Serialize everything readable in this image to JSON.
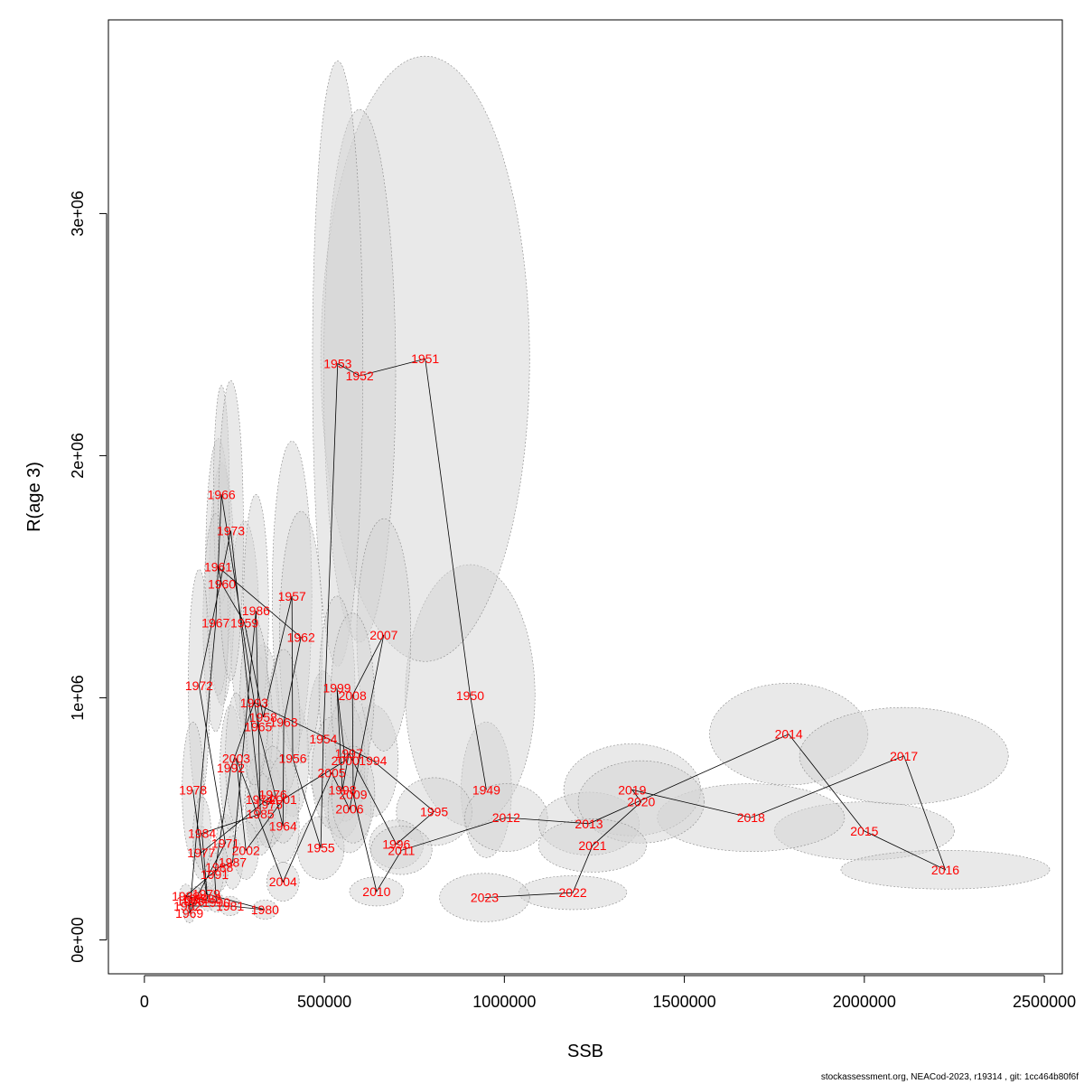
{
  "chart_data": {
    "type": "scatter",
    "xlabel": "SSB",
    "ylabel": "R(age 3)",
    "xlim": [
      -100000,
      2550000
    ],
    "ylim": [
      -140000,
      3800000
    ],
    "xticks": [
      0,
      500000,
      1000000,
      1500000,
      2000000,
      2500000
    ],
    "xtick_labels": [
      "0",
      "500000",
      "1000000",
      "1500000",
      "2000000",
      "2500000"
    ],
    "yticks": [
      0,
      1000000,
      2000000,
      3000000
    ],
    "ytick_labels": [
      "0e+00",
      "1e+06",
      "2e+06",
      "3e+06"
    ],
    "grid": false,
    "colors": {
      "year_label": "#ff0000",
      "path_line": "#000000",
      "ellipse_fill": "#d3d3d3",
      "ellipse_stroke": "#888888"
    },
    "points": [
      {
        "year": "1949",
        "ssb": 950000,
        "r": 620000,
        "ex": 70000,
        "ey": 280000
      },
      {
        "year": "1950",
        "ssb": 905000,
        "r": 1010000,
        "ex": 180000,
        "ey": 540000
      },
      {
        "year": "1951",
        "ssb": 780000,
        "r": 2400000,
        "ex": 290000,
        "ey": 1250000
      },
      {
        "year": "1952",
        "ssb": 598000,
        "r": 2330000,
        "ex": 100000,
        "ey": 1100000
      },
      {
        "year": "1953",
        "ssb": 537000,
        "r": 2380000,
        "ex": 70000,
        "ey": 1250000
      },
      {
        "year": "1954",
        "ssb": 497000,
        "r": 830000,
        "ex": 45000,
        "ey": 280000
      },
      {
        "year": "1955",
        "ssb": 490000,
        "r": 380000,
        "ex": 65000,
        "ey": 130000
      },
      {
        "year": "1956",
        "ssb": 412000,
        "r": 750000,
        "ex": 45000,
        "ey": 240000
      },
      {
        "year": "1957",
        "ssb": 410000,
        "r": 1420000,
        "ex": 55000,
        "ey": 640000
      },
      {
        "year": "1958",
        "ssb": 330000,
        "r": 920000,
        "ex": 45000,
        "ey": 300000
      },
      {
        "year": "1959",
        "ssb": 278000,
        "r": 1310000,
        "ex": 40000,
        "ey": 420000
      },
      {
        "year": "1960",
        "ssb": 215000,
        "r": 1470000,
        "ex": 35000,
        "ey": 500000
      },
      {
        "year": "1961",
        "ssb": 205000,
        "r": 1540000,
        "ex": 35000,
        "ey": 530000
      },
      {
        "year": "1962",
        "ssb": 435000,
        "r": 1250000,
        "ex": 60000,
        "ey": 520000
      },
      {
        "year": "1963",
        "ssb": 387000,
        "r": 900000,
        "ex": 45000,
        "ey": 300000
      },
      {
        "year": "1964",
        "ssb": 385000,
        "r": 470000,
        "ex": 45000,
        "ey": 150000
      },
      {
        "year": "1965",
        "ssb": 316000,
        "r": 880000,
        "ex": 40000,
        "ey": 290000
      },
      {
        "year": "1966",
        "ssb": 214000,
        "r": 1840000,
        "ex": 22000,
        "ey": 450000
      },
      {
        "year": "1967",
        "ssb": 198000,
        "r": 1310000,
        "ex": 35000,
        "ey": 450000
      },
      {
        "year": "1968",
        "ssb": 128000,
        "r": 160000,
        "ex": 18000,
        "ey": 40000
      },
      {
        "year": "1969",
        "ssb": 125000,
        "r": 110000,
        "ex": 15000,
        "ey": 40000
      },
      {
        "year": "1970",
        "ssb": 143000,
        "r": 170000,
        "ex": 18000,
        "ey": 50000
      },
      {
        "year": "1971",
        "ssb": 225000,
        "r": 400000,
        "ex": 25000,
        "ey": 120000
      },
      {
        "year": "1972",
        "ssb": 152000,
        "r": 1050000,
        "ex": 30000,
        "ey": 480000
      },
      {
        "year": "1973",
        "ssb": 240000,
        "r": 1690000,
        "ex": 35000,
        "ey": 620000
      },
      {
        "year": "1974",
        "ssb": 320000,
        "r": 580000,
        "ex": 40000,
        "ey": 190000
      },
      {
        "year": "1975",
        "ssb": 345000,
        "r": 560000,
        "ex": 40000,
        "ey": 180000
      },
      {
        "year": "1976",
        "ssb": 357000,
        "r": 600000,
        "ex": 40000,
        "ey": 200000
      },
      {
        "year": "1977",
        "ssb": 158000,
        "r": 360000,
        "ex": 25000,
        "ey": 110000
      },
      {
        "year": "1978",
        "ssb": 135000,
        "r": 620000,
        "ex": 30000,
        "ey": 280000
      },
      {
        "year": "1979",
        "ssb": 172000,
        "r": 190000,
        "ex": 22000,
        "ey": 50000
      },
      {
        "year": "1980",
        "ssb": 335000,
        "r": 125000,
        "ex": 35000,
        "ey": 40000
      },
      {
        "year": "1981",
        "ssb": 238000,
        "r": 140000,
        "ex": 30000,
        "ey": 40000
      },
      {
        "year": "1982",
        "ssb": 120000,
        "r": 140000,
        "ex": 18000,
        "ey": 40000
      },
      {
        "year": "1983",
        "ssb": 175000,
        "r": 170000,
        "ex": 22000,
        "ey": 50000
      },
      {
        "year": "1984",
        "ssb": 160000,
        "r": 440000,
        "ex": 25000,
        "ey": 150000
      },
      {
        "year": "1985",
        "ssb": 322000,
        "r": 520000,
        "ex": 40000,
        "ey": 170000
      },
      {
        "year": "1986",
        "ssb": 310000,
        "r": 1360000,
        "ex": 35000,
        "ey": 480000
      },
      {
        "year": "1987",
        "ssb": 245000,
        "r": 320000,
        "ex": 28000,
        "ey": 110000
      },
      {
        "year": "1988",
        "ssb": 208000,
        "r": 300000,
        "ex": 25000,
        "ey": 100000
      },
      {
        "year": "1989",
        "ssb": 115000,
        "r": 180000,
        "ex": 18000,
        "ey": 50000
      },
      {
        "year": "1990",
        "ssb": 200000,
        "r": 155000,
        "ex": 22000,
        "ey": 40000
      },
      {
        "year": "1991",
        "ssb": 195000,
        "r": 270000,
        "ex": 25000,
        "ey": 90000
      },
      {
        "year": "1992",
        "ssb": 240000,
        "r": 710000,
        "ex": 30000,
        "ey": 260000
      },
      {
        "year": "1993",
        "ssb": 305000,
        "r": 980000,
        "ex": 40000,
        "ey": 340000
      },
      {
        "year": "1994",
        "ssb": 635000,
        "r": 740000,
        "ex": 70000,
        "ey": 230000
      },
      {
        "year": "1995",
        "ssb": 805000,
        "r": 530000,
        "ex": 105000,
        "ey": 140000
      },
      {
        "year": "1996",
        "ssb": 700000,
        "r": 395000,
        "ex": 75000,
        "ey": 100000
      },
      {
        "year": "1997",
        "ssb": 568000,
        "r": 770000,
        "ex": 55000,
        "ey": 260000
      },
      {
        "year": "1998",
        "ssb": 550000,
        "r": 620000,
        "ex": 55000,
        "ey": 200000
      },
      {
        "year": "1999",
        "ssb": 535000,
        "r": 1040000,
        "ex": 50000,
        "ey": 380000
      },
      {
        "year": "2000",
        "ssb": 558000,
        "r": 740000,
        "ex": 55000,
        "ey": 250000
      },
      {
        "year": "2001",
        "ssb": 385000,
        "r": 580000,
        "ex": 45000,
        "ey": 180000
      },
      {
        "year": "2002",
        "ssb": 282000,
        "r": 370000,
        "ex": 35000,
        "ey": 120000
      },
      {
        "year": "2003",
        "ssb": 255000,
        "r": 750000,
        "ex": 30000,
        "ey": 270000
      },
      {
        "year": "2004",
        "ssb": 385000,
        "r": 240000,
        "ex": 45000,
        "ey": 80000
      },
      {
        "year": "2005",
        "ssb": 520000,
        "r": 690000,
        "ex": 55000,
        "ey": 230000
      },
      {
        "year": "2006",
        "ssb": 570000,
        "r": 540000,
        "ex": 60000,
        "ey": 180000
      },
      {
        "year": "2007",
        "ssb": 665000,
        "r": 1260000,
        "ex": 75000,
        "ey": 480000
      },
      {
        "year": "2008",
        "ssb": 578000,
        "r": 1010000,
        "ex": 60000,
        "ey": 340000
      },
      {
        "year": "2009",
        "ssb": 580000,
        "r": 600000,
        "ex": 60000,
        "ey": 200000
      },
      {
        "year": "2010",
        "ssb": 645000,
        "r": 200000,
        "ex": 75000,
        "ey": 60000
      },
      {
        "year": "2011",
        "ssb": 714000,
        "r": 370000,
        "ex": 85000,
        "ey": 100000
      },
      {
        "year": "2012",
        "ssb": 1005000,
        "r": 505000,
        "ex": 115000,
        "ey": 140000
      },
      {
        "year": "2013",
        "ssb": 1235000,
        "r": 480000,
        "ex": 140000,
        "ey": 130000
      },
      {
        "year": "2014",
        "ssb": 1790000,
        "r": 850000,
        "ex": 220000,
        "ey": 210000
      },
      {
        "year": "2015",
        "ssb": 2000000,
        "r": 450000,
        "ex": 250000,
        "ey": 120000
      },
      {
        "year": "2016",
        "ssb": 2225000,
        "r": 290000,
        "ex": 290000,
        "ey": 80000
      },
      {
        "year": "2017",
        "ssb": 2110000,
        "r": 760000,
        "ex": 290000,
        "ey": 200000
      },
      {
        "year": "2018",
        "ssb": 1685000,
        "r": 505000,
        "ex": 260000,
        "ey": 140000
      },
      {
        "year": "2019",
        "ssb": 1355000,
        "r": 620000,
        "ex": 190000,
        "ey": 190000
      },
      {
        "year": "2020",
        "ssb": 1380000,
        "r": 570000,
        "ex": 175000,
        "ey": 170000
      },
      {
        "year": "2021",
        "ssb": 1245000,
        "r": 390000,
        "ex": 150000,
        "ey": 110000
      },
      {
        "year": "2022",
        "ssb": 1190000,
        "r": 195000,
        "ex": 150000,
        "ey": 70000
      },
      {
        "year": "2023",
        "ssb": 945000,
        "r": 175000,
        "ex": 125000,
        "ey": 100000
      }
    ]
  },
  "footer": "stockassessment.org, NEACod-2023, r19314 , git: 1cc464b80f6f"
}
